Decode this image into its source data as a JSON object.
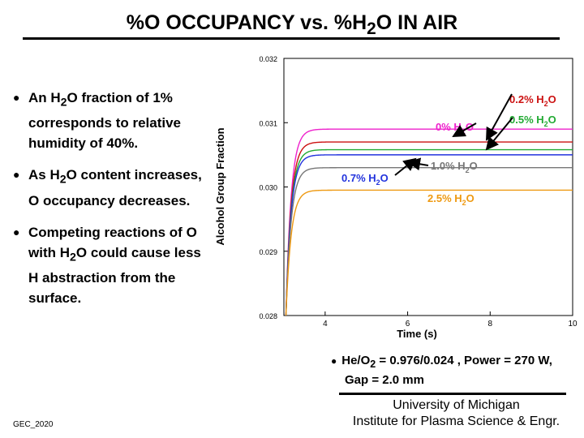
{
  "slide": {
    "title_pre": "%O OCCUPANCY vs. %H",
    "title_sub": "2",
    "title_post": "O IN AIR",
    "bullets": {
      "b1_pre": "An H",
      "b1_sub": "2",
      "b1_post": "O fraction of 1% corresponds to relative humidity of 40%.",
      "b2_pre": "As H",
      "b2_sub": "2",
      "b2_post": "O content increases, O occupancy decreases.",
      "b3_pre": "Competing reactions of O with H",
      "b3_sub": "2",
      "b3_post": "O could cause less H abstraction from the surface."
    },
    "conditions": {
      "line1_pre": "He/O",
      "line1_sub": "2",
      "line1_post": " = 0.976/0.024 , Power = 270 W,",
      "line2": "Gap = 2.0 mm"
    },
    "affiliation": {
      "line1": "University of Michigan",
      "line2": "Institute for Plasma Science & Engr."
    },
    "footer": "GEC_2020"
  },
  "chart_data": {
    "type": "line",
    "xlabel": "Time (s)",
    "ylabel": "Alcohol Group Fraction",
    "xlim": [
      3,
      10
    ],
    "ylim": [
      0.028,
      0.032
    ],
    "x_ticks": [
      4,
      6,
      8,
      10
    ],
    "y_ticks": [
      0.028,
      0.029,
      0.03,
      0.031,
      0.032
    ],
    "y_tick_labels": [
      "0.028",
      "0.029",
      "0.030",
      "0.031",
      "0.032"
    ],
    "grid": false,
    "series": [
      {
        "name": "0% H2O",
        "name_pre": "0% H",
        "name_sub": "2",
        "name_post": "O",
        "color": "#ee22cc",
        "plateau": 0.0309
      },
      {
        "name": "0.2% H2O",
        "name_pre": "0.2% H",
        "name_sub": "2",
        "name_post": "O",
        "color": "#cc1111",
        "plateau": 0.0307
      },
      {
        "name": "0.5% H2O",
        "name_pre": "0.5% H",
        "name_sub": "2",
        "name_post": "O",
        "color": "#22aa33",
        "plateau": 0.03058
      },
      {
        "name": "0.7% H2O",
        "name_pre": "0.7% H",
        "name_sub": "2",
        "name_post": "O",
        "color": "#2233dd",
        "plateau": 0.0305
      },
      {
        "name": "1.0% H2O",
        "name_pre": "1.0% H",
        "name_sub": "2",
        "name_post": "O",
        "color": "#777777",
        "plateau": 0.0303
      },
      {
        "name": "2.5% H2O",
        "name_pre": "2.5% H",
        "name_sub": "2",
        "name_post": "O",
        "color": "#ee9911",
        "plateau": 0.02995
      }
    ],
    "curve_start_x": 3.05,
    "curve_rise_rate": 8
  }
}
